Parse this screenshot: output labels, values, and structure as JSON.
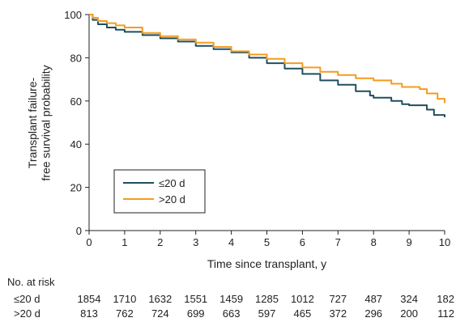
{
  "chart_data": {
    "type": "line",
    "xlabel": "Time since transplant, y",
    "ylabel_lines": [
      "Transplant failure-",
      "free survival probability"
    ],
    "xlim": [
      0,
      10
    ],
    "ylim": [
      0,
      100
    ],
    "x_ticks": [
      0,
      1,
      2,
      3,
      4,
      5,
      6,
      7,
      8,
      9,
      10
    ],
    "y_ticks": [
      0,
      20,
      40,
      60,
      80,
      100
    ],
    "grid": false,
    "legend_position": "bottom-left",
    "series": [
      {
        "name": "≤20 d",
        "color": "#1f4e5f",
        "points": [
          [
            0,
            100
          ],
          [
            0.1,
            97.5
          ],
          [
            0.25,
            95.5
          ],
          [
            0.5,
            94
          ],
          [
            0.75,
            93
          ],
          [
            1,
            92
          ],
          [
            1.5,
            90.5
          ],
          [
            2,
            89
          ],
          [
            2.5,
            87.5
          ],
          [
            3,
            85.5
          ],
          [
            3.5,
            84
          ],
          [
            4,
            82.5
          ],
          [
            4.5,
            80
          ],
          [
            5,
            77.5
          ],
          [
            5.5,
            75
          ],
          [
            6,
            72.5
          ],
          [
            6.5,
            69.5
          ],
          [
            7,
            67.5
          ],
          [
            7.5,
            64.5
          ],
          [
            7.9,
            62.5
          ],
          [
            8,
            61.5
          ],
          [
            8.5,
            60
          ],
          [
            8.8,
            58.5
          ],
          [
            9,
            58
          ],
          [
            9.5,
            56
          ],
          [
            9.7,
            53.5
          ],
          [
            10,
            52.5
          ]
        ]
      },
      {
        "name": ">20 d",
        "color": "#f39c1f",
        "points": [
          [
            0,
            100
          ],
          [
            0.1,
            98.5
          ],
          [
            0.25,
            97
          ],
          [
            0.5,
            96
          ],
          [
            0.75,
            95
          ],
          [
            1,
            94
          ],
          [
            1.5,
            91.5
          ],
          [
            2,
            90
          ],
          [
            2.5,
            88.5
          ],
          [
            3,
            87
          ],
          [
            3.5,
            85
          ],
          [
            4,
            83
          ],
          [
            4.5,
            81.5
          ],
          [
            5,
            79.5
          ],
          [
            5.5,
            77.5
          ],
          [
            6,
            75.5
          ],
          [
            6.5,
            73.5
          ],
          [
            7,
            72
          ],
          [
            7.5,
            70.5
          ],
          [
            8,
            69.5
          ],
          [
            8.5,
            68
          ],
          [
            8.8,
            66.5
          ],
          [
            9,
            66.5
          ],
          [
            9.3,
            65.5
          ],
          [
            9.5,
            63.5
          ],
          [
            9.8,
            61
          ],
          [
            10,
            59
          ]
        ]
      }
    ],
    "risk_table": {
      "title": "No. at risk",
      "rows": [
        {
          "label": "≤20 d",
          "values": [
            "1854",
            "1710",
            "1632",
            "1551",
            "1459",
            "1285",
            "1012",
            "727",
            "487",
            "324",
            "182"
          ]
        },
        {
          "label": ">20 d",
          "values": [
            "813",
            "762",
            "724",
            "699",
            "663",
            "597",
            "465",
            "372",
            "296",
            "200",
            "112"
          ]
        }
      ]
    }
  }
}
